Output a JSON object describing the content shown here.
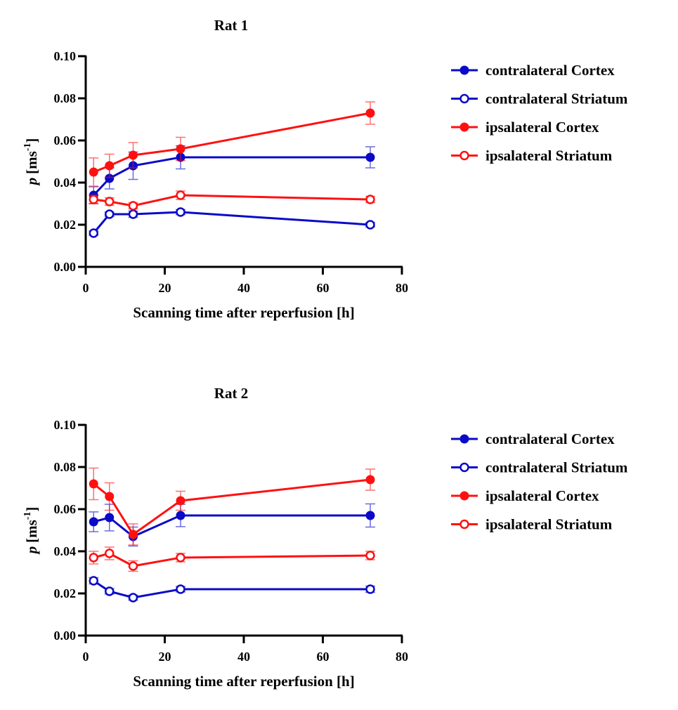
{
  "chart_data": [
    {
      "type": "line",
      "title": "Rat 1",
      "xlabel": "Scanning time after reperfusion [h]",
      "ylabel": "p [ms-1]",
      "ylabel_parts": {
        "symbol": "p",
        "unit": "[ms",
        "exponent": "-1",
        "close": "]"
      },
      "xlim": [
        0,
        80
      ],
      "ylim": [
        0,
        0.1
      ],
      "xticks": [
        "0",
        "20",
        "40",
        "60",
        "80"
      ],
      "yticks": [
        "0.00",
        "0.02",
        "0.04",
        "0.06",
        "0.08",
        "0.10"
      ],
      "grid": false,
      "legend_placement": "right",
      "x": [
        2,
        6,
        12,
        24,
        72
      ],
      "series": [
        {
          "name": "contralateral Cortex",
          "color": "#0a0ac8",
          "filled": true,
          "values": [
            0.034,
            0.042,
            0.048,
            0.052,
            0.052
          ],
          "errors": [
            0.004,
            0.005,
            0.0065,
            0.0055,
            0.005
          ]
        },
        {
          "name": "contralateral Striatum",
          "color": "#0a0ac8",
          "filled": false,
          "values": [
            0.016,
            0.025,
            0.025,
            0.026,
            0.02
          ],
          "errors": [
            0.001,
            0.001,
            0.0015,
            0.0012,
            0.001
          ]
        },
        {
          "name": "ipsalateral Cortex",
          "color": "#ff1010",
          "filled": true,
          "values": [
            0.045,
            0.048,
            0.053,
            0.056,
            0.073
          ],
          "errors": [
            0.0067,
            0.0055,
            0.006,
            0.0055,
            0.0053
          ]
        },
        {
          "name": "ipsalateral Striatum",
          "color": "#ff1010",
          "filled": false,
          "values": [
            0.032,
            0.031,
            0.029,
            0.034,
            0.032
          ],
          "errors": [
            0.002,
            0.0018,
            0.0015,
            0.002,
            0.0015
          ]
        }
      ]
    },
    {
      "type": "line",
      "title": "Rat 2",
      "xlabel": "Scanning time after reperfusion [h]",
      "ylabel": "p [ms-1]",
      "ylabel_parts": {
        "symbol": "p",
        "unit": "[ms",
        "exponent": "-1",
        "close": "]"
      },
      "xlim": [
        0,
        80
      ],
      "ylim": [
        0,
        0.1
      ],
      "xticks": [
        "0",
        "20",
        "40",
        "60",
        "80"
      ],
      "yticks": [
        "0.00",
        "0.02",
        "0.04",
        "0.06",
        "0.08",
        "0.10"
      ],
      "grid": false,
      "legend_placement": "right",
      "x": [
        2,
        6,
        12,
        24,
        72
      ],
      "series": [
        {
          "name": "contralateral Cortex",
          "color": "#0a0ac8",
          "filled": true,
          "values": [
            0.054,
            0.056,
            0.047,
            0.057,
            0.057
          ],
          "errors": [
            0.0047,
            0.0063,
            0.0045,
            0.0053,
            0.0055
          ]
        },
        {
          "name": "contralateral Striatum",
          "color": "#0a0ac8",
          "filled": false,
          "values": [
            0.026,
            0.021,
            0.018,
            0.022,
            0.022
          ],
          "errors": [
            0.0015,
            0.0013,
            0.0012,
            0.0013,
            0.0015
          ]
        },
        {
          "name": "ipsalateral Cortex",
          "color": "#ff1010",
          "filled": true,
          "values": [
            0.072,
            0.066,
            0.048,
            0.064,
            0.074
          ],
          "errors": [
            0.0075,
            0.0065,
            0.005,
            0.0045,
            0.005
          ]
        },
        {
          "name": "ipsalateral Striatum",
          "color": "#ff1010",
          "filled": false,
          "values": [
            0.037,
            0.039,
            0.033,
            0.037,
            0.038
          ],
          "errors": [
            0.003,
            0.003,
            0.0025,
            0.002,
            0.002
          ]
        }
      ]
    }
  ]
}
